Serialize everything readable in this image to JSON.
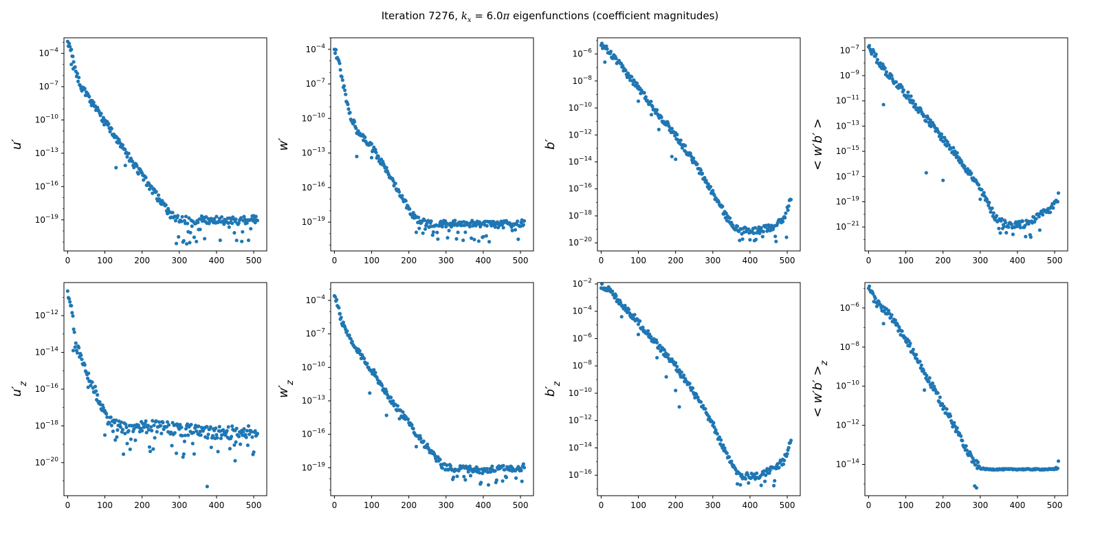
{
  "figure": {
    "title": "Iteration 7276, k_x = 6.0π eigenfunctions (coefficient magnitudes)",
    "title_parts": {
      "prefix": "Iteration 7276, ",
      "k": "k",
      "sub": "x",
      "eq": " = 6.0",
      "pi": "π",
      "suffix": " eigenfunctions (coefficient magnitudes)"
    }
  },
  "colors": {
    "marker": "#1f77b4",
    "axes": "#000000"
  },
  "chart_data": [
    {
      "type": "scatter",
      "ylabel": "u′",
      "yscale": "log",
      "xlim": [
        -10,
        535
      ],
      "ylim": [
        -21.8,
        -2.6
      ],
      "yticks_exp": [
        -4,
        -7,
        -10,
        -13,
        -16,
        -19
      ],
      "xticks": [
        0,
        100,
        200,
        300,
        400,
        500
      ],
      "profile": {
        "knots": [
          [
            0,
            -3.2
          ],
          [
            10,
            -3.8
          ],
          [
            20,
            -5.5
          ],
          [
            40,
            -7.2
          ],
          [
            100,
            -10.2
          ],
          [
            150,
            -12.6
          ],
          [
            200,
            -15.0
          ],
          [
            240,
            -16.9
          ],
          [
            275,
            -18.5
          ],
          [
            300,
            -19.0
          ],
          [
            350,
            -19.0
          ],
          [
            400,
            -19.0
          ],
          [
            450,
            -19.1
          ],
          [
            510,
            -18.9
          ]
        ],
        "noise": 0.35,
        "floor_start": 285,
        "floor_low": -21.2,
        "outliers": [
          [
            10,
            -5.0
          ],
          [
            15,
            -5.4
          ],
          [
            65,
            -8.5
          ],
          [
            130,
            -14.3
          ],
          [
            155,
            -14.1
          ]
        ]
      }
    },
    {
      "type": "scatter",
      "ylabel": "w′",
      "yscale": "log",
      "xlim": [
        -10,
        535
      ],
      "ylim": [
        -21.5,
        -3.0
      ],
      "yticks_exp": [
        -4,
        -7,
        -10,
        -13,
        -16,
        -19
      ],
      "xticks": [
        0,
        100,
        200,
        300,
        400,
        500
      ],
      "profile": {
        "knots": [
          [
            0,
            -4.0
          ],
          [
            10,
            -4.8
          ],
          [
            20,
            -6.5
          ],
          [
            40,
            -9.5
          ],
          [
            60,
            -11.0
          ],
          [
            100,
            -12.5
          ],
          [
            150,
            -15.0
          ],
          [
            200,
            -17.8
          ],
          [
            220,
            -18.8
          ],
          [
            260,
            -19.2
          ],
          [
            350,
            -19.1
          ],
          [
            450,
            -19.2
          ],
          [
            510,
            -19.1
          ]
        ],
        "noise": 0.3,
        "floor_start": 215,
        "floor_low": -20.8,
        "outliers": [
          [
            60,
            -13.3
          ],
          [
            100,
            -13.4
          ]
        ]
      }
    },
    {
      "type": "scatter",
      "ylabel": "b′",
      "yscale": "log",
      "xlim": [
        -10,
        535
      ],
      "ylim": [
        -20.6,
        -4.8
      ],
      "yticks_exp": [
        -6,
        -8,
        -10,
        -12,
        -14,
        -16,
        -18,
        -20
      ],
      "xticks": [
        0,
        100,
        200,
        300,
        400,
        500
      ],
      "profile": {
        "knots": [
          [
            0,
            -5.3
          ],
          [
            20,
            -5.8
          ],
          [
            50,
            -6.8
          ],
          [
            100,
            -8.5
          ],
          [
            150,
            -10.3
          ],
          [
            200,
            -12.0
          ],
          [
            250,
            -14.0
          ],
          [
            300,
            -16.3
          ],
          [
            340,
            -18.2
          ],
          [
            370,
            -19.1
          ],
          [
            420,
            -19.1
          ],
          [
            460,
            -18.8
          ],
          [
            490,
            -18.3
          ],
          [
            510,
            -16.7
          ]
        ],
        "noise": 0.25,
        "floor_start": 360,
        "floor_low": -19.9,
        "outliers": [
          [
            10,
            -6.6
          ],
          [
            100,
            -9.5
          ],
          [
            135,
            -10.5
          ],
          [
            155,
            -11.6
          ],
          [
            190,
            -13.6
          ],
          [
            200,
            -13.8
          ]
        ]
      }
    },
    {
      "type": "scatter",
      "ylabel": "< w′b′ >",
      "yscale": "log",
      "xlim": [
        -10,
        535
      ],
      "ylim": [
        -22.9,
        -6.0
      ],
      "yticks_exp": [
        -7,
        -9,
        -11,
        -13,
        -15,
        -17,
        -19,
        -21
      ],
      "xticks": [
        0,
        100,
        200,
        300,
        400,
        500
      ],
      "profile": {
        "knots": [
          [
            0,
            -6.6
          ],
          [
            20,
            -7.6
          ],
          [
            50,
            -8.8
          ],
          [
            100,
            -10.4
          ],
          [
            150,
            -12.2
          ],
          [
            200,
            -14.0
          ],
          [
            250,
            -15.8
          ],
          [
            300,
            -18.0
          ],
          [
            340,
            -20.2
          ],
          [
            370,
            -20.8
          ],
          [
            420,
            -20.8
          ],
          [
            460,
            -20.1
          ],
          [
            490,
            -19.6
          ],
          [
            510,
            -18.6
          ]
        ],
        "noise": 0.3,
        "floor_start": 340,
        "floor_low": -22.0,
        "outliers": [
          [
            40,
            -11.3
          ],
          [
            155,
            -16.7
          ],
          [
            200,
            -17.3
          ],
          [
            300,
            -18.8
          ]
        ]
      }
    },
    {
      "type": "scatter",
      "ylabel": "u′_z",
      "yscale": "log",
      "xlim": [
        -10,
        535
      ],
      "ylim": [
        -21.8,
        -10.2
      ],
      "yticks_exp": [
        -12,
        -14,
        -16,
        -18,
        -20
      ],
      "xticks": [
        0,
        100,
        200,
        300,
        400,
        500
      ],
      "profile": {
        "knots": [
          [
            0,
            -10.9
          ],
          [
            10,
            -11.6
          ],
          [
            20,
            -13.5
          ],
          [
            40,
            -14.5
          ],
          [
            60,
            -15.5
          ],
          [
            100,
            -17.3
          ],
          [
            120,
            -18.0
          ],
          [
            150,
            -18.1
          ],
          [
            200,
            -18.0
          ],
          [
            300,
            -18.2
          ],
          [
            400,
            -18.4
          ],
          [
            500,
            -18.3
          ],
          [
            510,
            -18.5
          ]
        ],
        "noise": 0.35,
        "floor_start": 120,
        "floor_low": -19.7,
        "outliers": [
          [
            15,
            -13.9
          ],
          [
            55,
            -15.9
          ],
          [
            100,
            -18.5
          ],
          [
            375,
            -21.3
          ],
          [
            450,
            -19.9
          ]
        ]
      }
    },
    {
      "type": "scatter",
      "ylabel": "w′_z",
      "yscale": "log",
      "xlim": [
        -10,
        535
      ],
      "ylim": [
        -21.5,
        -2.4
      ],
      "yticks_exp": [
        -4,
        -7,
        -10,
        -13,
        -16,
        -19
      ],
      "xticks": [
        0,
        100,
        200,
        300,
        400,
        500
      ],
      "profile": {
        "knots": [
          [
            0,
            -3.5
          ],
          [
            10,
            -4.5
          ],
          [
            20,
            -6.0
          ],
          [
            50,
            -8.0
          ],
          [
            100,
            -10.2
          ],
          [
            150,
            -12.8
          ],
          [
            200,
            -15.0
          ],
          [
            250,
            -17.2
          ],
          [
            290,
            -18.8
          ],
          [
            320,
            -19.1
          ],
          [
            400,
            -19.2
          ],
          [
            500,
            -19.0
          ],
          [
            510,
            -18.8
          ]
        ],
        "noise": 0.3,
        "floor_start": 300,
        "floor_low": -20.6,
        "outliers": [
          [
            15,
            -5.2
          ],
          [
            95,
            -12.3
          ],
          [
            140,
            -14.3
          ],
          [
            175,
            -14.6
          ],
          [
            220,
            -17.1
          ]
        ]
      }
    },
    {
      "type": "scatter",
      "ylabel": "b′_z",
      "yscale": "log",
      "xlim": [
        -10,
        535
      ],
      "ylim": [
        -17.5,
        -1.9
      ],
      "yticks_exp": [
        -2,
        -4,
        -6,
        -8,
        -10,
        -12,
        -14,
        -16
      ],
      "xticks": [
        0,
        100,
        200,
        300,
        400,
        500
      ],
      "profile": {
        "knots": [
          [
            0,
            -2.1
          ],
          [
            20,
            -2.4
          ],
          [
            50,
            -3.3
          ],
          [
            100,
            -4.8
          ],
          [
            150,
            -6.4
          ],
          [
            200,
            -8.0
          ],
          [
            250,
            -10.0
          ],
          [
            300,
            -12.3
          ],
          [
            340,
            -14.7
          ],
          [
            370,
            -16.0
          ],
          [
            420,
            -16.1
          ],
          [
            460,
            -15.5
          ],
          [
            490,
            -15.0
          ],
          [
            510,
            -13.6
          ]
        ],
        "noise": 0.25,
        "floor_start": 360,
        "floor_low": -16.8,
        "outliers": [
          [
            55,
            -4.4
          ],
          [
            100,
            -5.7
          ],
          [
            150,
            -7.4
          ],
          [
            175,
            -8.8
          ],
          [
            200,
            -9.8
          ],
          [
            210,
            -11.0
          ]
        ]
      }
    },
    {
      "type": "scatter",
      "ylabel": "< w′b′ >_z",
      "yscale": "log",
      "xlim": [
        -10,
        535
      ],
      "ylim": [
        -15.6,
        -4.7
      ],
      "yticks_exp": [
        -6,
        -8,
        -10,
        -12,
        -14
      ],
      "xticks": [
        0,
        100,
        200,
        300,
        400,
        500
      ],
      "profile": {
        "knots": [
          [
            0,
            -5.0
          ],
          [
            20,
            -5.7
          ],
          [
            50,
            -6.2
          ],
          [
            100,
            -7.6
          ],
          [
            150,
            -9.3
          ],
          [
            200,
            -11.0
          ],
          [
            250,
            -12.7
          ],
          [
            280,
            -13.8
          ],
          [
            300,
            -14.2
          ],
          [
            320,
            -14.25
          ],
          [
            500,
            -14.25
          ],
          [
            510,
            -14.0
          ]
        ],
        "noise": 0.2,
        "floor_start": 99999,
        "floor_low": -14.3,
        "flat_after": 300,
        "outliers": [
          [
            285,
            -15.1
          ],
          [
            290,
            -15.2
          ],
          [
            40,
            -6.8
          ],
          [
            150,
            -10.2
          ]
        ]
      }
    }
  ]
}
